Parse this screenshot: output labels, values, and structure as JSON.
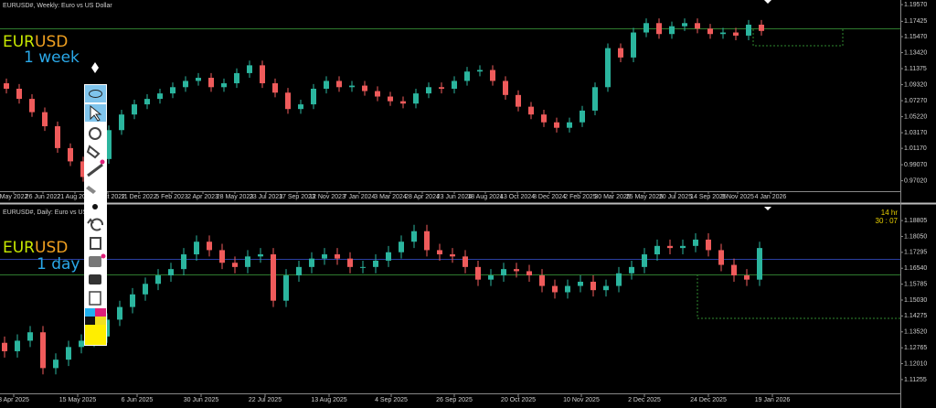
{
  "chart_data": [
    {
      "type": "candlestick",
      "title": "EURUSD#, Weekly:  Euro vs US Dollar",
      "up_color": "#2bb59e",
      "down_color": "#ef5b5b",
      "logo": {
        "base": "EUR",
        "quote": "USD",
        "period": "1 week"
      },
      "ylim": [
        0.958,
        1.2016
      ],
      "yticks": [
        {
          "value": 1.1957,
          "label": "1.19570"
        },
        {
          "value": 1.17425,
          "label": "1.17425"
        },
        {
          "value": 1.1547,
          "label": "1.15470"
        },
        {
          "value": 1.1342,
          "label": "1.13420"
        },
        {
          "value": 1.11375,
          "label": "1.11375"
        },
        {
          "value": 1.0932,
          "label": "1.09320"
        },
        {
          "value": 1.0727,
          "label": "1.07270"
        },
        {
          "value": 1.0522,
          "label": "1.05220"
        },
        {
          "value": 1.0317,
          "label": "1.03170"
        },
        {
          "value": 1.0117,
          "label": "1.01170"
        },
        {
          "value": 0.9907,
          "label": "0.99070"
        },
        {
          "value": 0.9702,
          "label": "0.97020"
        }
      ],
      "date_labels": [
        "May 2022",
        "26 Jun 2022",
        "21 Aug 2022",
        "16 Oct 2022",
        "11 Dec 2022",
        "5 Feb 2023",
        "2 Apr 2023",
        "28 May 2023",
        "23 Jul 2023",
        "17 Sep 2023",
        "12 Nov 2023",
        "7 Jan 2024",
        "3 Mar 2024",
        "28 Apr 2024",
        "23 Jun 2024",
        "18 Aug 2024",
        "13 Oct 2024",
        "8 Dec 2024",
        "2 Feb 2025",
        "30 Mar 2025",
        "25 May 2025",
        "20 Jul 2025",
        "14 Sep 2025",
        "9 Nov 2025",
        "4 Jan 2026"
      ],
      "open": [
        1.095,
        1.088,
        1.075,
        1.058,
        1.04,
        1.012,
        0.995,
        0.975,
        0.998,
        1.035,
        1.055,
        1.068,
        1.075,
        1.082,
        1.09,
        1.098,
        1.102,
        1.09,
        1.095,
        1.108,
        1.118,
        1.095,
        1.083,
        1.062,
        1.068,
        1.088,
        1.098,
        1.09,
        1.092,
        1.085,
        1.078,
        1.072,
        1.069,
        1.082,
        1.09,
        1.088,
        1.098,
        1.11,
        1.112,
        1.098,
        1.08,
        1.065,
        1.055,
        1.045,
        1.038,
        1.045,
        1.06,
        1.09,
        1.14,
        1.128,
        1.16,
        1.172,
        1.158,
        1.168,
        1.172,
        1.165,
        1.158,
        1.16,
        1.156,
        1.17
      ],
      "high": [
        1.101,
        1.094,
        1.081,
        1.064,
        1.046,
        1.018,
        1.001,
        1.004,
        1.041,
        1.061,
        1.074,
        1.081,
        1.088,
        1.096,
        1.104,
        1.108,
        1.108,
        1.101,
        1.114,
        1.124,
        1.124,
        1.101,
        1.089,
        1.074,
        1.094,
        1.104,
        1.104,
        1.098,
        1.098,
        1.091,
        1.084,
        1.078,
        1.088,
        1.096,
        1.096,
        1.104,
        1.116,
        1.118,
        1.118,
        1.104,
        1.086,
        1.071,
        1.061,
        1.051,
        1.051,
        1.066,
        1.096,
        1.146,
        1.146,
        1.166,
        1.178,
        1.178,
        1.174,
        1.178,
        1.178,
        1.171,
        1.166,
        1.166,
        1.176,
        1.176
      ],
      "low": [
        1.082,
        1.069,
        1.052,
        1.034,
        1.006,
        0.989,
        0.969,
        0.969,
        0.992,
        1.029,
        1.049,
        1.062,
        1.069,
        1.076,
        1.084,
        1.092,
        1.084,
        1.084,
        1.089,
        1.102,
        1.089,
        1.077,
        1.056,
        1.056,
        1.062,
        1.082,
        1.084,
        1.084,
        1.079,
        1.072,
        1.066,
        1.063,
        1.063,
        1.076,
        1.082,
        1.082,
        1.092,
        1.104,
        1.092,
        1.074,
        1.059,
        1.049,
        1.039,
        1.032,
        1.032,
        1.039,
        1.054,
        1.084,
        1.122,
        1.122,
        1.154,
        1.152,
        1.152,
        1.162,
        1.159,
        1.152,
        1.152,
        1.15,
        1.15,
        1.156
      ],
      "close": [
        1.088,
        1.075,
        1.058,
        1.04,
        1.012,
        0.995,
        0.975,
        0.998,
        1.035,
        1.055,
        1.068,
        1.075,
        1.082,
        1.09,
        1.098,
        1.102,
        1.09,
        1.095,
        1.108,
        1.118,
        1.095,
        1.083,
        1.062,
        1.068,
        1.088,
        1.098,
        1.09,
        1.092,
        1.085,
        1.078,
        1.072,
        1.069,
        1.082,
        1.09,
        1.088,
        1.098,
        1.11,
        1.112,
        1.098,
        1.08,
        1.065,
        1.055,
        1.045,
        1.038,
        1.045,
        1.06,
        1.09,
        1.14,
        1.128,
        1.16,
        1.172,
        1.158,
        1.168,
        1.172,
        1.165,
        1.158,
        1.16,
        1.156,
        1.17,
        1.162
      ]
    },
    {
      "type": "candlestick",
      "title": "EURUSD#, Daily:  Euro vs US Dollar",
      "up_color": "#2bb59e",
      "down_color": "#ef5b5b",
      "logo": {
        "base": "EUR",
        "quote": "USD",
        "period": "1 day"
      },
      "timer": [
        "14 hr",
        "30 : 07"
      ],
      "ylim": [
        1.106,
        1.1946
      ],
      "yticks": [
        {
          "value": 1.18805,
          "label": "1.18805"
        },
        {
          "value": 1.1805,
          "label": "1.18050"
        },
        {
          "value": 1.17295,
          "label": "1.17295"
        },
        {
          "value": 1.1654,
          "label": "1.16540"
        },
        {
          "value": 1.15785,
          "label": "1.15785"
        },
        {
          "value": 1.1503,
          "label": "1.15030"
        },
        {
          "value": 1.14275,
          "label": "1.14275"
        },
        {
          "value": 1.1352,
          "label": "1.13520"
        },
        {
          "value": 1.12765,
          "label": "1.12765"
        },
        {
          "value": 1.1201,
          "label": "1.12010"
        },
        {
          "value": 1.11255,
          "label": "1.11255"
        }
      ],
      "date_labels": [
        "3 Apr 2025",
        "15 May 2025",
        "6 Jun 2025",
        "30 Jun 2025",
        "22 Jul 2025",
        "13 Aug 2025",
        "4 Sep 2025",
        "26 Sep 2025",
        "20 Oct 2025",
        "10 Nov 2025",
        "2 Dec 2025",
        "24 Dec 2025",
        "19 Jan 2026"
      ],
      "open": [
        1.13,
        1.126,
        1.131,
        1.135,
        1.118,
        1.122,
        1.128,
        1.131,
        1.133,
        1.141,
        1.147,
        1.153,
        1.158,
        1.162,
        1.165,
        1.172,
        1.178,
        1.174,
        1.168,
        1.166,
        1.171,
        1.172,
        1.15,
        1.162,
        1.166,
        1.17,
        1.172,
        1.17,
        1.166,
        1.166,
        1.169,
        1.173,
        1.178,
        1.183,
        1.174,
        1.172,
        1.171,
        1.166,
        1.16,
        1.162,
        1.165,
        1.164,
        1.162,
        1.157,
        1.154,
        1.157,
        1.159,
        1.155,
        1.157,
        1.163,
        1.166,
        1.172,
        1.176,
        1.175,
        1.176,
        1.179,
        1.174,
        1.167,
        1.162,
        1.16
      ],
      "high": [
        1.133,
        1.134,
        1.138,
        1.138,
        1.125,
        1.131,
        1.134,
        1.136,
        1.144,
        1.15,
        1.156,
        1.161,
        1.165,
        1.168,
        1.175,
        1.181,
        1.181,
        1.177,
        1.171,
        1.174,
        1.175,
        1.175,
        1.165,
        1.169,
        1.173,
        1.175,
        1.175,
        1.173,
        1.169,
        1.172,
        1.176,
        1.181,
        1.186,
        1.186,
        1.177,
        1.175,
        1.174,
        1.169,
        1.165,
        1.168,
        1.168,
        1.167,
        1.165,
        1.16,
        1.16,
        1.162,
        1.162,
        1.16,
        1.166,
        1.169,
        1.175,
        1.179,
        1.179,
        1.179,
        1.182,
        1.182,
        1.177,
        1.17,
        1.165,
        1.178
      ],
      "low": [
        1.123,
        1.123,
        1.128,
        1.115,
        1.115,
        1.119,
        1.125,
        1.128,
        1.13,
        1.138,
        1.144,
        1.15,
        1.155,
        1.159,
        1.162,
        1.169,
        1.171,
        1.165,
        1.163,
        1.163,
        1.168,
        1.147,
        1.147,
        1.159,
        1.163,
        1.167,
        1.167,
        1.163,
        1.163,
        1.163,
        1.166,
        1.17,
        1.175,
        1.171,
        1.169,
        1.168,
        1.163,
        1.157,
        1.157,
        1.159,
        1.161,
        1.159,
        1.154,
        1.151,
        1.151,
        1.154,
        1.152,
        1.152,
        1.154,
        1.16,
        1.163,
        1.169,
        1.172,
        1.172,
        1.173,
        1.171,
        1.164,
        1.159,
        1.157,
        1.157
      ],
      "close": [
        1.126,
        1.131,
        1.135,
        1.118,
        1.122,
        1.128,
        1.131,
        1.133,
        1.141,
        1.147,
        1.153,
        1.158,
        1.162,
        1.165,
        1.172,
        1.178,
        1.174,
        1.168,
        1.166,
        1.171,
        1.172,
        1.15,
        1.162,
        1.166,
        1.17,
        1.172,
        1.17,
        1.166,
        1.166,
        1.169,
        1.173,
        1.178,
        1.183,
        1.174,
        1.172,
        1.171,
        1.166,
        1.16,
        1.162,
        1.165,
        1.164,
        1.162,
        1.157,
        1.154,
        1.157,
        1.159,
        1.155,
        1.157,
        1.163,
        1.166,
        1.172,
        1.176,
        1.175,
        1.176,
        1.179,
        1.174,
        1.167,
        1.162,
        1.16,
        1.175
      ]
    }
  ]
}
